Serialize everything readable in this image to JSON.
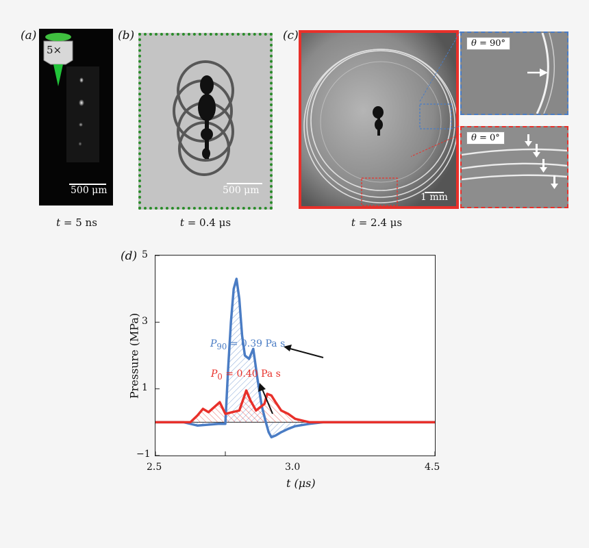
{
  "panels": {
    "a": {
      "label": "(a)",
      "objective": "5×",
      "scale_bar": "500 μm",
      "caption_var": "t",
      "caption_val": " = 5 ns"
    },
    "b": {
      "label": "(b)",
      "scale_bar": "500 μm",
      "caption_var": "t",
      "caption_val": " = 0.4 μs"
    },
    "c": {
      "label": "(c)",
      "scale_bar": "1 mm",
      "caption_var": "t",
      "caption_val": " = 2.4 μs",
      "inset_top": {
        "sym": "θ",
        "val": " = 90°"
      },
      "inset_bottom": {
        "sym": "θ",
        "val": " = 0°"
      }
    }
  },
  "colors": {
    "blue": "#4a7cc4",
    "red": "#e8302a",
    "green": "#2a8c2a"
  },
  "chart_data": {
    "type": "line",
    "panel_label": "(d)",
    "xlabel": "t (μs)",
    "ylabel": "Pressure (MPa)",
    "xlim": [
      2.5,
      4.5
    ],
    "ylim": [
      -1,
      5
    ],
    "xticks": [
      "2.5",
      "3.0",
      "4.5"
    ],
    "yticks": [
      "5",
      "3",
      "1",
      "−1"
    ],
    "annotations": [
      {
        "sym": "P",
        "sub": "90",
        "text": " = 0.39 Pa s",
        "color": "#4a7cc4"
      },
      {
        "sym": "P",
        "sub": "0",
        "text": " = 0.40 Pa s",
        "color": "#e8302a"
      }
    ],
    "series": [
      {
        "color": "#4a7cc4",
        "x": [
          2.5,
          2.7,
          2.8,
          2.95,
          3.0,
          3.02,
          3.04,
          3.06,
          3.08,
          3.1,
          3.12,
          3.14,
          3.17,
          3.2,
          3.23,
          3.26,
          3.29,
          3.31,
          3.33,
          3.36,
          3.4,
          3.45,
          3.5,
          3.6,
          3.7,
          3.8,
          4.0,
          4.5
        ],
        "y": [
          0,
          0,
          -0.1,
          -0.05,
          -0.05,
          1.6,
          3.0,
          4.0,
          4.3,
          3.7,
          2.6,
          2.0,
          1.9,
          2.2,
          1.3,
          0.5,
          0,
          -0.3,
          -0.45,
          -0.4,
          -0.3,
          -0.2,
          -0.12,
          -0.05,
          0,
          0,
          0,
          0
        ]
      },
      {
        "color": "#e8302a",
        "x": [
          2.5,
          2.75,
          2.8,
          2.84,
          2.88,
          2.92,
          2.96,
          3.0,
          3.05,
          3.1,
          3.15,
          3.18,
          3.22,
          3.28,
          3.3,
          3.33,
          3.36,
          3.4,
          3.45,
          3.5,
          3.55,
          3.6,
          3.7,
          4.0,
          4.5
        ],
        "y": [
          0,
          0,
          0.2,
          0.4,
          0.3,
          0.45,
          0.6,
          0.25,
          0.3,
          0.35,
          0.95,
          0.65,
          0.35,
          0.55,
          0.85,
          0.8,
          0.6,
          0.35,
          0.25,
          0.1,
          0.05,
          0,
          0,
          0,
          0
        ]
      }
    ]
  }
}
